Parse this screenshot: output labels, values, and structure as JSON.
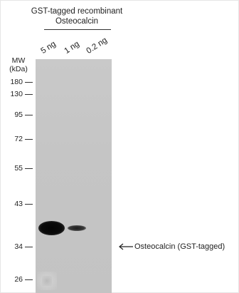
{
  "title": {
    "line1": "GST-tagged recombinant",
    "line2": "Osteocalcin"
  },
  "lanes": [
    {
      "label": "5 ng"
    },
    {
      "label": "1 ng"
    },
    {
      "label": "0.2 ng"
    }
  ],
  "mw_header": {
    "line1": "MW",
    "line2": "(kDa)"
  },
  "markers": [
    {
      "label": "180"
    },
    {
      "label": "130"
    },
    {
      "label": "95"
    },
    {
      "label": "72"
    },
    {
      "label": "55"
    },
    {
      "label": "43"
    },
    {
      "label": "34"
    },
    {
      "label": "26"
    }
  ],
  "annotation": {
    "arrow_icon": "left-arrow-icon",
    "label": "Osteocalcin (GST-tagged)"
  }
}
